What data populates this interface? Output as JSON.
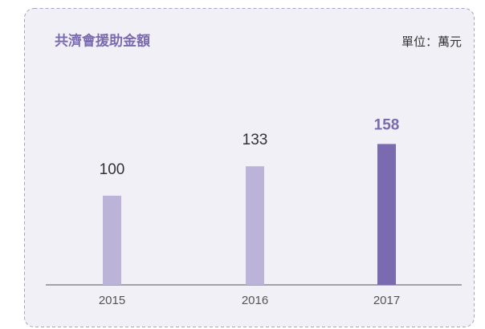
{
  "chart_data": {
    "type": "bar",
    "title": "共濟會援助金額",
    "subtitle": "單位：萬元",
    "categories": [
      "2015",
      "2016",
      "2017"
    ],
    "values": [
      100,
      133,
      158
    ],
    "colors": [
      "#bcb3d9",
      "#bcb3d9",
      "#7a6bb0"
    ],
    "label_colors": [
      "#333333",
      "#333333",
      "#7a6bb0"
    ],
    "ylim": [
      0,
      180
    ]
  }
}
